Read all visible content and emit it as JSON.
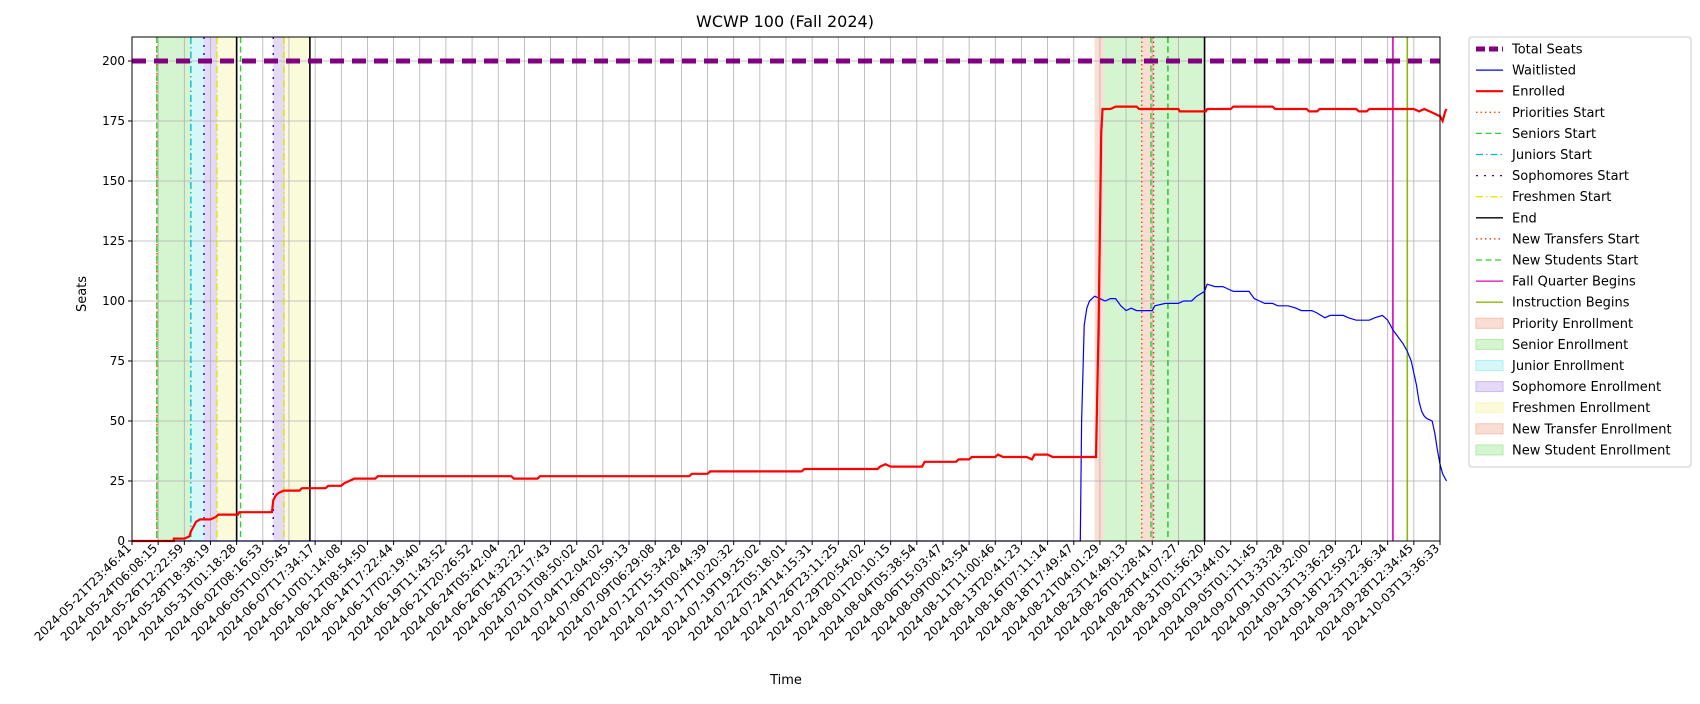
{
  "chart_data": {
    "type": "line",
    "title": "WCWP 100 (Fall 2024)",
    "xlabel": "Time",
    "ylabel": "Seats",
    "xlim": [
      "2024-05-21T23:46:41",
      "2024-10-03T13:36:33"
    ],
    "ylim": [
      0,
      210
    ],
    "yticks": [
      0,
      25,
      50,
      75,
      100,
      125,
      150,
      175,
      200
    ],
    "grid": true,
    "legend_position": "outside-right",
    "xtick_labels": [
      "2024-05-21T23:46:41",
      "2024-05-24T06:08:15",
      "2024-05-26T12:22:59",
      "2024-05-28T18:38:19",
      "2024-05-31T01:18:28",
      "2024-06-02T08:16:53",
      "2024-06-05T10:05:45",
      "2024-06-07T17:34:17",
      "2024-06-10T01:14:08",
      "2024-06-12T08:54:50",
      "2024-06-14T17:22:44",
      "2024-06-17T02:19:40",
      "2024-06-19T11:43:52",
      "2024-06-21T20:26:52",
      "2024-06-24T05:42:04",
      "2024-06-26T14:32:22",
      "2024-06-28T23:17:43",
      "2024-07-01T08:50:02",
      "2024-07-04T12:04:02",
      "2024-07-06T20:59:13",
      "2024-07-09T06:29:08",
      "2024-07-12T15:34:28",
      "2024-07-15T00:44:39",
      "2024-07-17T10:20:32",
      "2024-07-19T19:25:02",
      "2024-07-22T05:18:01",
      "2024-07-24T14:15:31",
      "2024-07-26T23:11:25",
      "2024-07-29T20:54:02",
      "2024-08-01T20:10:15",
      "2024-08-04T05:38:54",
      "2024-08-06T15:03:47",
      "2024-08-09T00:43:54",
      "2024-08-11T11:00:46",
      "2024-08-13T20:41:23",
      "2024-08-16T07:11:14",
      "2024-08-18T17:49:47",
      "2024-08-21T04:01:29",
      "2024-08-23T14:49:13",
      "2024-08-26T01:28:41",
      "2024-08-28T14:07:27",
      "2024-08-31T01:56:20",
      "2024-09-02T13:44:01",
      "2024-09-05T01:11:45",
      "2024-09-07T13:33:28",
      "2024-09-10T01:32:00",
      "2024-09-13T13:36:29",
      "2024-09-18T12:59:22",
      "2024-09-23T12:36:34",
      "2024-09-28T12:34:45",
      "2024-10-03T13:36:33"
    ],
    "series": [
      {
        "name": "Total Seats",
        "color": "#800080",
        "style": "thick-dashed",
        "points": [
          [
            0,
            200
          ],
          [
            50,
            200
          ]
        ]
      },
      {
        "name": "Waitlisted",
        "color": "#0000ff",
        "style": "solid",
        "points": [
          [
            0,
            0
          ],
          [
            36.25,
            0
          ],
          [
            36.3,
            50
          ],
          [
            36.4,
            90
          ],
          [
            36.5,
            97
          ],
          [
            36.6,
            100
          ],
          [
            36.8,
            102
          ],
          [
            37.0,
            101
          ],
          [
            37.2,
            100
          ],
          [
            37.4,
            101
          ],
          [
            37.6,
            101
          ],
          [
            37.8,
            98
          ],
          [
            38.0,
            96
          ],
          [
            38.2,
            97
          ],
          [
            38.4,
            96
          ],
          [
            38.7,
            96
          ],
          [
            39.0,
            96
          ],
          [
            39.1,
            98
          ],
          [
            39.5,
            99
          ],
          [
            40.0,
            99
          ],
          [
            40.2,
            100
          ],
          [
            40.5,
            100
          ],
          [
            40.7,
            102
          ],
          [
            41.0,
            104
          ],
          [
            41.1,
            107
          ],
          [
            41.4,
            106
          ],
          [
            41.7,
            106
          ],
          [
            41.9,
            105
          ],
          [
            42.1,
            104
          ],
          [
            42.7,
            104
          ],
          [
            42.9,
            101
          ],
          [
            43.1,
            100
          ],
          [
            43.3,
            99
          ],
          [
            43.6,
            99
          ],
          [
            43.8,
            98
          ],
          [
            44.2,
            98
          ],
          [
            44.5,
            97
          ],
          [
            44.7,
            96
          ],
          [
            45.1,
            96
          ],
          [
            45.3,
            95
          ],
          [
            45.6,
            93
          ],
          [
            45.8,
            94
          ],
          [
            46.3,
            94
          ],
          [
            46.5,
            93
          ],
          [
            46.8,
            92
          ],
          [
            47.3,
            92
          ],
          [
            47.5,
            93
          ],
          [
            47.8,
            94
          ],
          [
            48.0,
            92
          ],
          [
            48.2,
            88
          ],
          [
            48.4,
            85
          ],
          [
            48.6,
            82
          ],
          [
            48.75,
            79
          ],
          [
            48.9,
            75
          ],
          [
            49.0,
            70
          ],
          [
            49.1,
            65
          ],
          [
            49.2,
            58
          ],
          [
            49.3,
            54
          ],
          [
            49.4,
            52
          ],
          [
            49.5,
            51
          ],
          [
            49.7,
            50
          ],
          [
            49.8,
            45
          ],
          [
            49.9,
            38
          ],
          [
            50.0,
            32
          ],
          [
            50.1,
            28
          ],
          [
            50.25,
            25
          ]
        ]
      },
      {
        "name": "Enrolled",
        "color": "#ff0000",
        "style": "solid-thick",
        "points": [
          [
            0,
            0
          ],
          [
            1.6,
            0
          ],
          [
            1.6,
            1
          ],
          [
            2.0,
            1
          ],
          [
            2.2,
            2
          ],
          [
            2.25,
            4
          ],
          [
            2.35,
            6
          ],
          [
            2.45,
            8
          ],
          [
            2.6,
            9
          ],
          [
            3.0,
            9
          ],
          [
            3.2,
            10
          ],
          [
            3.3,
            11
          ],
          [
            4.05,
            11
          ],
          [
            4.1,
            12
          ],
          [
            5.35,
            12
          ],
          [
            5.4,
            17
          ],
          [
            5.5,
            19
          ],
          [
            5.6,
            20
          ],
          [
            5.8,
            21
          ],
          [
            6.4,
            21
          ],
          [
            6.5,
            22
          ],
          [
            7.4,
            22
          ],
          [
            7.5,
            23
          ],
          [
            8.0,
            23
          ],
          [
            8.1,
            24
          ],
          [
            8.3,
            25
          ],
          [
            8.5,
            26
          ],
          [
            9.3,
            26
          ],
          [
            9.4,
            27
          ],
          [
            14.5,
            27
          ],
          [
            14.6,
            26
          ],
          [
            15.5,
            26
          ],
          [
            15.6,
            27
          ],
          [
            21.3,
            27
          ],
          [
            21.4,
            28
          ],
          [
            22.0,
            28
          ],
          [
            22.1,
            29
          ],
          [
            25.6,
            29
          ],
          [
            25.7,
            30
          ],
          [
            28.5,
            30
          ],
          [
            28.6,
            31
          ],
          [
            28.8,
            32
          ],
          [
            29.0,
            31
          ],
          [
            30.2,
            31
          ],
          [
            30.3,
            33
          ],
          [
            31.5,
            33
          ],
          [
            31.6,
            34
          ],
          [
            32.0,
            34
          ],
          [
            32.1,
            35
          ],
          [
            33.0,
            35
          ],
          [
            33.1,
            36
          ],
          [
            33.3,
            35
          ],
          [
            34.2,
            35
          ],
          [
            34.4,
            34
          ],
          [
            34.5,
            36
          ],
          [
            35.0,
            36
          ],
          [
            35.2,
            35
          ],
          [
            36.85,
            35
          ],
          [
            36.95,
            90
          ],
          [
            37.05,
            170
          ],
          [
            37.1,
            180
          ],
          [
            37.4,
            180
          ],
          [
            37.6,
            181
          ],
          [
            38.4,
            181
          ],
          [
            38.5,
            180
          ],
          [
            40.0,
            180
          ],
          [
            40.05,
            179
          ],
          [
            41.05,
            179
          ],
          [
            41.1,
            180
          ],
          [
            42.0,
            180
          ],
          [
            42.1,
            181
          ],
          [
            43.6,
            181
          ],
          [
            43.7,
            180
          ],
          [
            44.9,
            180
          ],
          [
            45.0,
            179
          ],
          [
            45.3,
            179
          ],
          [
            45.4,
            180
          ],
          [
            46.8,
            180
          ],
          [
            46.9,
            179
          ],
          [
            47.2,
            179
          ],
          [
            47.3,
            180
          ],
          [
            49.0,
            180
          ],
          [
            49.2,
            179
          ],
          [
            49.4,
            180
          ],
          [
            49.6,
            179
          ],
          [
            49.8,
            178
          ],
          [
            50.0,
            177
          ],
          [
            50.1,
            175
          ],
          [
            50.2,
            179
          ],
          [
            50.25,
            180
          ]
        ]
      }
    ],
    "vertical_markers": [
      {
        "name": "Priorities Start",
        "color": "#ff4500",
        "style": "dotted",
        "x": [
          0.95,
          38.6
        ]
      },
      {
        "name": "Seniors Start",
        "color": "#32cd32",
        "style": "dashed",
        "x": [
          0.95,
          4.15,
          38.95,
          39.6
        ]
      },
      {
        "name": "Juniors Start",
        "color": "#00bcd4",
        "style": "dashdot",
        "x": [
          2.25
        ]
      },
      {
        "name": "Sophomores Start",
        "color": "#3300cc",
        "style": "loose-dashdot",
        "x": [
          2.75,
          5.4
        ]
      },
      {
        "name": "Freshmen Start",
        "color": "#e6e600",
        "style": "dashdot",
        "x": [
          3.25,
          5.8
        ]
      },
      {
        "name": "End",
        "color": "#000000",
        "style": "solid",
        "x": [
          4.0,
          6.8,
          41.0
        ]
      },
      {
        "name": "New Transfers Start",
        "color": "#ff2200",
        "style": "dotted",
        "x": [
          39.05
        ]
      },
      {
        "name": "New Students Start",
        "color": "#32cd32",
        "style": "dashed",
        "x": [
          39.6
        ]
      },
      {
        "name": "Fall Quarter Begins",
        "color": "#e600b8",
        "style": "solid",
        "x": [
          48.2
        ]
      },
      {
        "name": "Instruction Begins",
        "color": "#88bb00",
        "style": "solid",
        "x": [
          48.75
        ]
      }
    ],
    "shaded_regions": [
      {
        "name": "Priority Enrollment",
        "color": "#f4c2b0",
        "x": [
          0.95,
          1.0
        ]
      },
      {
        "name": "Senior Enrollment",
        "color": "#b3ecaa",
        "x": [
          1.0,
          2.25
        ]
      },
      {
        "name": "Junior Enrollment",
        "color": "#b0f0f2",
        "x": [
          2.25,
          2.75
        ]
      },
      {
        "name": "Sophomore Enrollment",
        "color": "#cdb9ee",
        "x": [
          2.75,
          3.25
        ]
      },
      {
        "name": "Freshmen Enrollment",
        "color": "#f7f7c0",
        "x": [
          3.25,
          4.0
        ]
      },
      {
        "name": "Sophomore Enrollment",
        "color": "#cdb9ee",
        "x": [
          5.4,
          5.85
        ]
      },
      {
        "name": "Freshmen Enrollment",
        "color": "#f7f7c0",
        "x": [
          5.85,
          6.8
        ]
      },
      {
        "name": "Priority Enrollment",
        "color": "#f4c2b0",
        "x": [
          36.8,
          37.15
        ]
      },
      {
        "name": "Senior Enrollment",
        "color": "#b3ecaa",
        "x": [
          37.15,
          38.6
        ]
      },
      {
        "name": "New Transfer Enrollment",
        "color": "#f4c2b0",
        "x": [
          38.6,
          39.05
        ]
      },
      {
        "name": "New Student Enrollment",
        "color": "#b3ecaa",
        "x": [
          39.05,
          41.0
        ]
      }
    ],
    "legend": [
      {
        "label": "Total Seats",
        "kind": "line",
        "color": "#800080",
        "style": "thick-dashed"
      },
      {
        "label": "Waitlisted",
        "kind": "line",
        "color": "#0000ff",
        "style": "solid"
      },
      {
        "label": "Enrolled",
        "kind": "line",
        "color": "#ff0000",
        "style": "solid-thick"
      },
      {
        "label": "Priorities Start",
        "kind": "line",
        "color": "#ff4500",
        "style": "dotted"
      },
      {
        "label": "Seniors Start",
        "kind": "line",
        "color": "#32cd32",
        "style": "dashed"
      },
      {
        "label": "Juniors Start",
        "kind": "line",
        "color": "#00bcd4",
        "style": "dashdot"
      },
      {
        "label": "Sophomores Start",
        "kind": "line",
        "color": "#3300cc",
        "style": "loose-dashdot"
      },
      {
        "label": "Freshmen Start",
        "kind": "line",
        "color": "#e6e600",
        "style": "dashdot"
      },
      {
        "label": "End",
        "kind": "line",
        "color": "#000000",
        "style": "solid"
      },
      {
        "label": "New Transfers Start",
        "kind": "line",
        "color": "#ff2200",
        "style": "dotted"
      },
      {
        "label": "New Students Start",
        "kind": "line",
        "color": "#32cd32",
        "style": "dashed"
      },
      {
        "label": "Fall Quarter Begins",
        "kind": "line",
        "color": "#e600b8",
        "style": "solid"
      },
      {
        "label": "Instruction Begins",
        "kind": "line",
        "color": "#88bb00",
        "style": "solid"
      },
      {
        "label": "Priority Enrollment",
        "kind": "patch",
        "color": "#f4c2b0"
      },
      {
        "label": "Senior Enrollment",
        "kind": "patch",
        "color": "#b3ecaa"
      },
      {
        "label": "Junior Enrollment",
        "kind": "patch",
        "color": "#b0f0f2"
      },
      {
        "label": "Sophomore Enrollment",
        "kind": "patch",
        "color": "#cdb9ee"
      },
      {
        "label": "Freshmen Enrollment",
        "kind": "patch",
        "color": "#f7f7c0"
      },
      {
        "label": "New Transfer Enrollment",
        "kind": "patch",
        "color": "#f4c2b0"
      },
      {
        "label": "New Student Enrollment",
        "kind": "patch",
        "color": "#b3ecaa"
      }
    ]
  }
}
